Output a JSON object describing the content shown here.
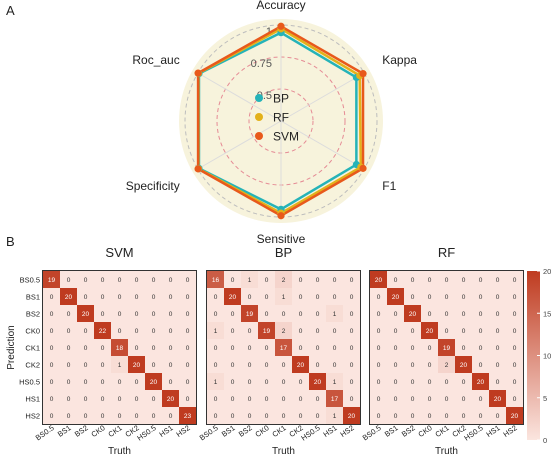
{
  "panels": {
    "a": "A",
    "b": "B"
  },
  "colors": {
    "BP": "#25b3b8",
    "RF": "#e3b11a",
    "SVM": "#e8591b",
    "radar_fill": "#f7f3dc",
    "ring_outer": "#bdbdbd",
    "ring_inner": "#e58b95",
    "heat_low": "#fbe5df",
    "heat_high": "#bf3b20"
  },
  "chart_data": [
    {
      "type": "radar",
      "axes": [
        "Accuracy",
        "Kappa",
        "F1",
        "Sensitive",
        "Specificity",
        "Roc_auc"
      ],
      "radial_ticks": [
        "0.5",
        "0.75",
        "1"
      ],
      "rlim": [
        0.25,
        1
      ],
      "legend": {
        "position": "center",
        "entries": [
          "BP",
          "RF",
          "SVM"
        ]
      },
      "series": [
        {
          "name": "BP",
          "values": [
            0.94,
            0.93,
            0.93,
            0.94,
            0.99,
            0.99
          ]
        },
        {
          "name": "RF",
          "values": [
            0.97,
            0.96,
            0.97,
            0.97,
            0.995,
            0.995
          ]
        },
        {
          "name": "SVM",
          "values": [
            0.99,
            0.99,
            0.99,
            0.99,
            0.998,
            0.998
          ]
        }
      ]
    },
    {
      "type": "heatmap",
      "title": "SVM",
      "xlabel": "Truth",
      "ylabel": "Prediction",
      "categories": [
        "BS0.5",
        "BS1",
        "BS2",
        "CK0",
        "CK1",
        "CK2",
        "HS0.5",
        "HS1",
        "HS2"
      ],
      "matrix": [
        [
          19,
          0,
          0,
          0,
          0,
          0,
          0,
          0,
          0
        ],
        [
          0,
          20,
          0,
          0,
          0,
          0,
          0,
          0,
          0
        ],
        [
          0,
          0,
          20,
          0,
          0,
          0,
          0,
          0,
          0
        ],
        [
          0,
          0,
          0,
          22,
          0,
          0,
          0,
          0,
          0
        ],
        [
          0,
          0,
          0,
          0,
          18,
          0,
          0,
          0,
          0
        ],
        [
          0,
          0,
          0,
          0,
          1,
          20,
          0,
          0,
          0
        ],
        [
          0,
          0,
          0,
          0,
          0,
          0,
          20,
          0,
          0
        ],
        [
          0,
          0,
          0,
          0,
          0,
          0,
          0,
          20,
          0
        ],
        [
          0,
          0,
          0,
          0,
          0,
          0,
          0,
          0,
          23
        ]
      ]
    },
    {
      "type": "heatmap",
      "title": "BP",
      "xlabel": "Truth",
      "categories": [
        "BS0.5",
        "BS1",
        "BS2",
        "CK0",
        "CK1",
        "CK2",
        "HS0.5",
        "HS1",
        "HS2"
      ],
      "matrix": [
        [
          16,
          0,
          1,
          0,
          2,
          0,
          0,
          0,
          0
        ],
        [
          0,
          20,
          0,
          0,
          1,
          0,
          0,
          0,
          0
        ],
        [
          0,
          0,
          19,
          0,
          0,
          0,
          0,
          1,
          0
        ],
        [
          1,
          0,
          0,
          19,
          2,
          0,
          0,
          0,
          0
        ],
        [
          0,
          0,
          0,
          0,
          17,
          0,
          0,
          0,
          0
        ],
        [
          0,
          0,
          0,
          0,
          0,
          20,
          0,
          0,
          0
        ],
        [
          1,
          0,
          0,
          0,
          0,
          0,
          20,
          1,
          0
        ],
        [
          0,
          0,
          0,
          0,
          0,
          0,
          0,
          17,
          0
        ],
        [
          0,
          0,
          0,
          0,
          0,
          0,
          0,
          1,
          20
        ]
      ]
    },
    {
      "type": "heatmap",
      "title": "RF",
      "xlabel": "Truth",
      "categories": [
        "BS0.5",
        "BS1",
        "BS2",
        "CK0",
        "CK1",
        "CK2",
        "HS0.5",
        "HS1",
        "HS2"
      ],
      "matrix": [
        [
          20,
          0,
          0,
          0,
          0,
          0,
          0,
          0,
          0
        ],
        [
          0,
          20,
          0,
          0,
          0,
          0,
          0,
          0,
          0
        ],
        [
          0,
          0,
          20,
          0,
          0,
          0,
          0,
          0,
          0
        ],
        [
          0,
          0,
          0,
          20,
          0,
          0,
          0,
          0,
          0
        ],
        [
          0,
          0,
          0,
          0,
          19,
          0,
          0,
          0,
          0
        ],
        [
          0,
          0,
          0,
          0,
          2,
          20,
          0,
          0,
          0
        ],
        [
          0,
          0,
          0,
          0,
          0,
          0,
          20,
          0,
          0
        ],
        [
          0,
          0,
          0,
          0,
          0,
          0,
          0,
          20,
          0
        ],
        [
          0,
          0,
          0,
          0,
          0,
          0,
          0,
          0,
          20
        ]
      ]
    },
    {
      "type": "colorbar",
      "ticks": [
        20,
        15,
        10,
        5,
        0
      ],
      "range": [
        0,
        20
      ]
    }
  ]
}
